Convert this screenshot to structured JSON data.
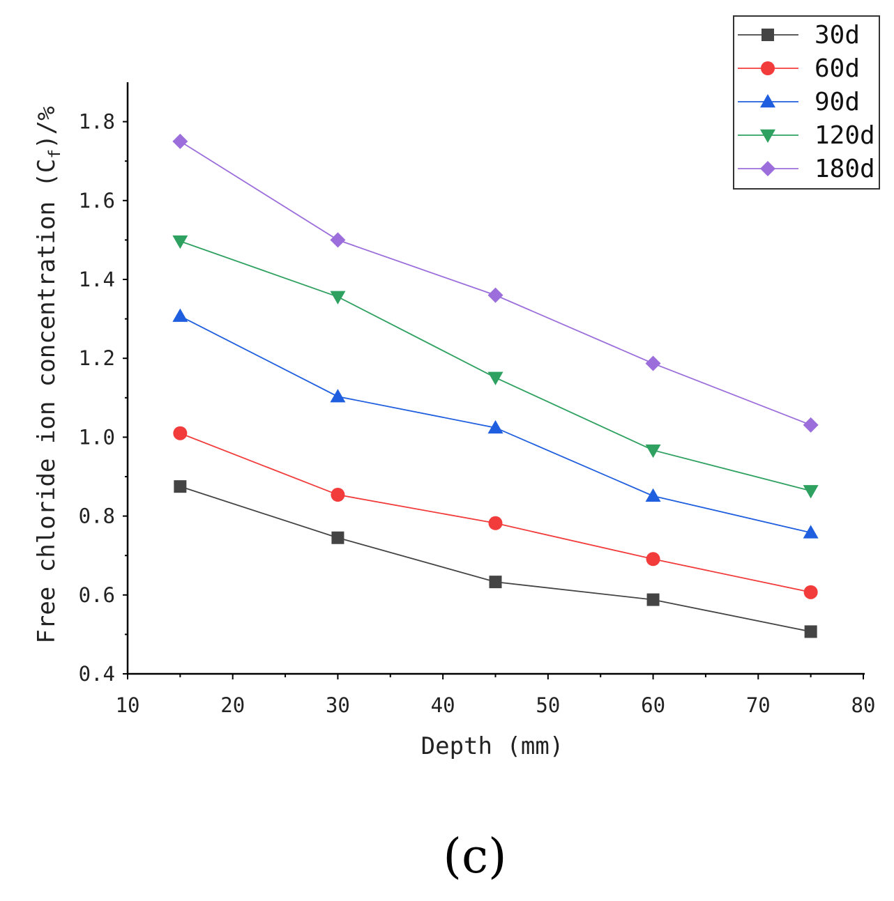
{
  "chart_data": {
    "type": "line",
    "title": "",
    "xlabel": "Depth (mm)",
    "ylabel_main": "Free chloride ion concentration (C",
    "ylabel_sub": "f",
    "ylabel_tail": ")/%",
    "xlim": [
      10,
      80
    ],
    "ylim": [
      0.4,
      1.9
    ],
    "x_ticks": [
      10,
      20,
      30,
      40,
      50,
      60,
      70,
      80
    ],
    "y_ticks": [
      0.4,
      0.6,
      0.8,
      1.0,
      1.2,
      1.4,
      1.6,
      1.8
    ],
    "x_tick_labels": [
      "10",
      "20",
      "30",
      "40",
      "50",
      "60",
      "70",
      "80"
    ],
    "y_tick_labels": [
      "0.4",
      "0.6",
      "0.8",
      "1.0",
      "1.2",
      "1.4",
      "1.6",
      "1.8"
    ],
    "x": [
      15,
      30,
      45,
      60,
      75
    ],
    "legend_position": "top-right",
    "series": [
      {
        "name": "30d",
        "color": "#444444",
        "marker": "square",
        "values": [
          0.875,
          0.745,
          0.633,
          0.588,
          0.507
        ]
      },
      {
        "name": "60d",
        "color": "#f23b3b",
        "marker": "circle",
        "values": [
          1.01,
          0.854,
          0.782,
          0.691,
          0.607
        ]
      },
      {
        "name": "90d",
        "color": "#1f5fdf",
        "marker": "triangle-up",
        "values": [
          1.307,
          1.103,
          1.024,
          0.851,
          0.758
        ]
      },
      {
        "name": "120d",
        "color": "#2ea05f",
        "marker": "triangle-down",
        "values": [
          1.497,
          1.356,
          1.151,
          0.967,
          0.864
        ]
      },
      {
        "name": "180d",
        "color": "#9b6edb",
        "marker": "diamond",
        "values": [
          1.75,
          1.5,
          1.36,
          1.187,
          1.031
        ]
      }
    ]
  },
  "panel_label": "(c)"
}
